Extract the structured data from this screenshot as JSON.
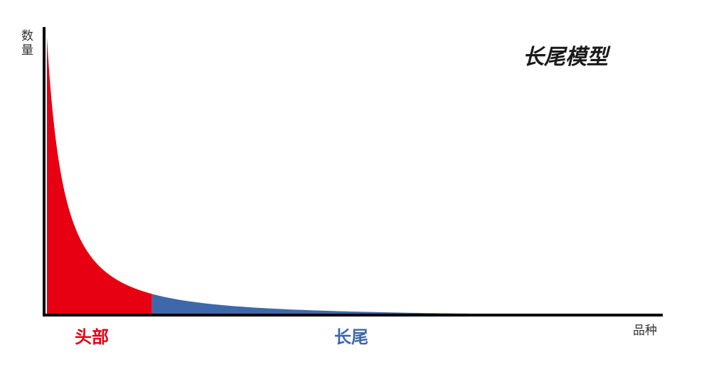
{
  "chart_data": {
    "type": "area",
    "title": "长尾模型",
    "xlabel": "品种",
    "ylabel": "数量",
    "xlim": [
      0,
      100
    ],
    "ylim": [
      0,
      100
    ],
    "curve": {
      "form": "power-law",
      "decay": 0.72
    },
    "regions": [
      {
        "name": "头部",
        "x_start": 0,
        "x_end": 17.5,
        "color": "#e60012"
      },
      {
        "name": "长尾",
        "x_start": 17.5,
        "x_end": 100,
        "color": "#3f68aa"
      }
    ],
    "grid": false,
    "legend": "none"
  },
  "colors": {
    "head": "#e60012",
    "tail": "#3f68aa",
    "axis": "#000000",
    "tail_label": "#3f68aa",
    "head_label": "#e60012"
  }
}
